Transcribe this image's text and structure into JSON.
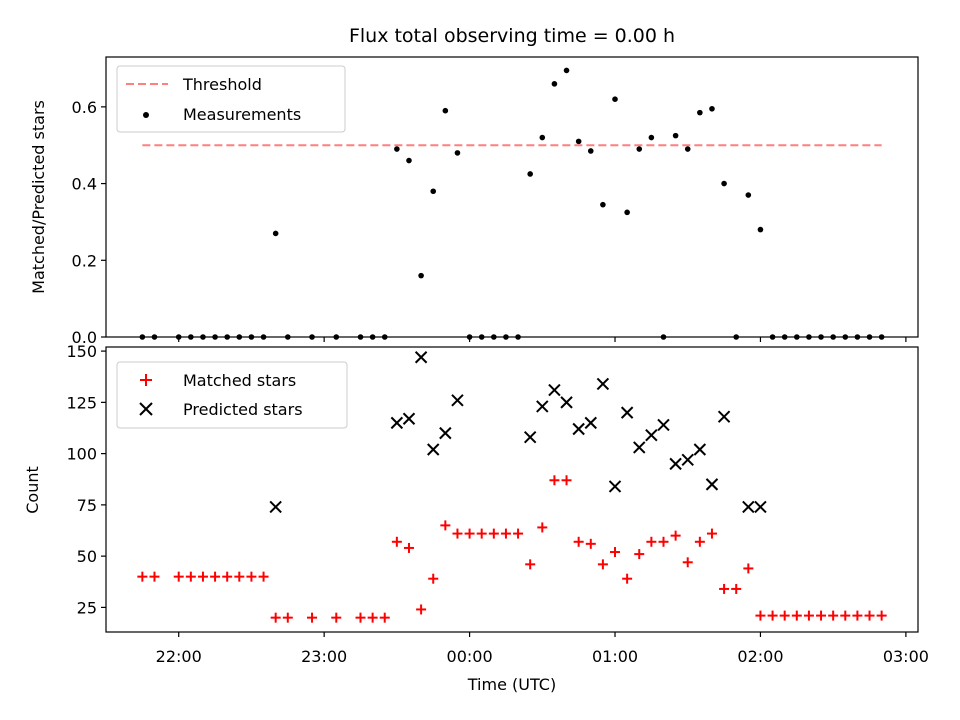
{
  "chart_data": [
    {
      "type": "scatter",
      "title": "Flux total observing time = 0.00 h",
      "ylabel": "Matched/Predicted stars",
      "ylim": [
        0,
        0.73
      ],
      "yticks": [
        0.0,
        0.2,
        0.4,
        0.6
      ],
      "ytick_labels": [
        "0.0",
        "0.2",
        "0.4",
        "0.6"
      ],
      "legend": {
        "position": "top-left",
        "entries": [
          "Threshold",
          "Measurements"
        ]
      },
      "threshold": {
        "name": "Threshold",
        "value": 0.5,
        "x_range": [
          "21:45",
          "02:50"
        ],
        "color": "#ff7f7f"
      },
      "series": [
        {
          "name": "Measurements",
          "color": "#000000",
          "x": [
            "21:45",
            "21:50",
            "22:00",
            "22:05",
            "22:10",
            "22:15",
            "22:20",
            "22:25",
            "22:30",
            "22:35",
            "22:40",
            "22:45",
            "22:55",
            "23:05",
            "23:15",
            "23:20",
            "23:25",
            "23:30",
            "23:35",
            "23:40",
            "23:45",
            "23:50",
            "23:55",
            "00:00",
            "00:05",
            "00:10",
            "00:15",
            "00:20",
            "00:25",
            "00:30",
            "00:35",
            "00:40",
            "00:45",
            "00:50",
            "00:55",
            "01:00",
            "01:05",
            "01:10",
            "01:15",
            "01:20",
            "01:25",
            "01:30",
            "01:35",
            "01:40",
            "01:45",
            "01:50",
            "01:55",
            "02:00",
            "02:05",
            "02:10",
            "02:15",
            "02:20",
            "02:25",
            "02:30",
            "02:35",
            "02:40",
            "02:45",
            "02:50"
          ],
          "y": [
            0.0,
            0.0,
            0.0,
            0.0,
            0.0,
            0.0,
            0.0,
            0.0,
            0.0,
            0.0,
            0.27,
            0.0,
            0.0,
            0.0,
            0.0,
            0.0,
            0.0,
            0.49,
            0.46,
            0.16,
            0.38,
            0.59,
            0.48,
            0.0,
            0.0,
            0.0,
            0.0,
            0.0,
            0.425,
            0.52,
            0.66,
            0.695,
            0.51,
            0.485,
            0.345,
            0.62,
            0.325,
            0.49,
            0.52,
            0.0,
            0.525,
            0.49,
            0.585,
            0.595,
            0.4,
            0.0,
            0.37,
            0.28,
            0.0,
            0.0,
            0.0,
            0.0,
            0.0,
            0.0,
            0.0,
            0.0,
            0.0,
            0.0
          ]
        }
      ]
    },
    {
      "type": "scatter",
      "xlabel": "Time (UTC)",
      "ylabel": "Count",
      "ylim": [
        13,
        152
      ],
      "yticks": [
        25,
        50,
        75,
        100,
        125,
        150
      ],
      "ytick_labels": [
        "25",
        "50",
        "75",
        "100",
        "125",
        "150"
      ],
      "xticks": [
        "22:00",
        "23:00",
        "00:00",
        "01:00",
        "02:00",
        "03:00"
      ],
      "xlim": [
        "21:30",
        "03:05"
      ],
      "legend": {
        "position": "top-left",
        "entries": [
          "Matched stars",
          "Predicted stars"
        ]
      },
      "series": [
        {
          "name": "Matched stars",
          "marker": "plus",
          "color": "#ff0000",
          "x": [
            "21:45",
            "21:50",
            "22:00",
            "22:05",
            "22:10",
            "22:15",
            "22:20",
            "22:25",
            "22:30",
            "22:35",
            "22:40",
            "22:45",
            "22:55",
            "23:05",
            "23:15",
            "23:20",
            "23:25",
            "23:30",
            "23:35",
            "23:40",
            "23:45",
            "23:50",
            "23:55",
            "00:00",
            "00:05",
            "00:10",
            "00:15",
            "00:20",
            "00:25",
            "00:30",
            "00:35",
            "00:40",
            "00:45",
            "00:50",
            "00:55",
            "01:00",
            "01:05",
            "01:10",
            "01:15",
            "01:20",
            "01:25",
            "01:30",
            "01:35",
            "01:40",
            "01:45",
            "01:50",
            "01:55",
            "02:00",
            "02:05",
            "02:10",
            "02:15",
            "02:20",
            "02:25",
            "02:30",
            "02:35",
            "02:40",
            "02:45",
            "02:50"
          ],
          "y": [
            40,
            40,
            40,
            40,
            40,
            40,
            40,
            40,
            40,
            40,
            20,
            20,
            20,
            20,
            20,
            20,
            20,
            57,
            54,
            24,
            39,
            65,
            61,
            61,
            61,
            61,
            61,
            61,
            46,
            64,
            87,
            87,
            57,
            56,
            46,
            52,
            39,
            51,
            57,
            57,
            60,
            47,
            57,
            61,
            34,
            34,
            44,
            21,
            21,
            21,
            21,
            21,
            21,
            21,
            21,
            21,
            21,
            21
          ]
        },
        {
          "name": "Predicted stars",
          "marker": "x",
          "color": "#000000",
          "x": [
            "22:40",
            "23:30",
            "23:35",
            "23:40",
            "23:45",
            "23:50",
            "23:55",
            "00:25",
            "00:30",
            "00:35",
            "00:40",
            "00:45",
            "00:50",
            "00:55",
            "01:00",
            "01:05",
            "01:10",
            "01:15",
            "01:20",
            "01:25",
            "01:30",
            "01:35",
            "01:40",
            "01:45",
            "01:55",
            "02:00"
          ],
          "y": [
            74,
            115,
            117,
            147,
            102,
            110,
            126,
            108,
            123,
            131,
            125,
            112,
            115,
            134,
            84,
            120,
            103,
            109,
            114,
            95,
            97,
            102,
            85,
            118,
            74,
            74
          ]
        }
      ]
    }
  ]
}
